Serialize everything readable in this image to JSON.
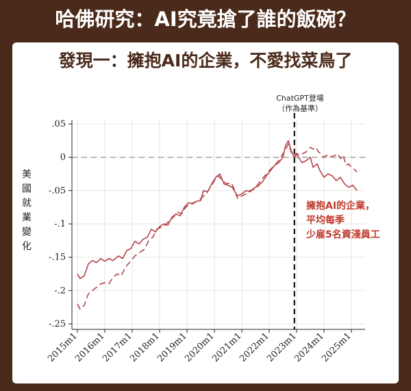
{
  "title": "哈佛研究：AI究竟搶了誰的飯碗？",
  "subtitle": "發現一：擁抱AI的企業，不愛找菜鳥了",
  "ylabel": "美國就業變化",
  "annotation_line1": "ChatGPT登場",
  "annotation_line2": "（作為基準）",
  "red_label_1": "擁抱AI的企業，",
  "red_label_2": "平均每季",
  "red_label_3": "少雇5名資淺員工",
  "colors": {
    "background": "#4a2a1a",
    "series": "#b5434a",
    "reference": "#111111"
  },
  "chart_data": {
    "type": "line",
    "xlim": [
      2015.0,
      2025.25
    ],
    "ylim": [
      -0.25,
      0.05
    ],
    "x_ticks": [
      {
        "value": 2015,
        "label": "2015m1"
      },
      {
        "value": 2016,
        "label": "2016m1"
      },
      {
        "value": 2017,
        "label": "2017m1"
      },
      {
        "value": 2018,
        "label": "2018m1"
      },
      {
        "value": 2019,
        "label": "2019m1"
      },
      {
        "value": 2020,
        "label": "2020m1"
      },
      {
        "value": 2021,
        "label": "2021m1"
      },
      {
        "value": 2022,
        "label": "2022m1"
      },
      {
        "value": 2023,
        "label": "2023m1"
      },
      {
        "value": 2024,
        "label": "2024m1"
      },
      {
        "value": 2025,
        "label": "2025m1"
      }
    ],
    "y_ticks": [
      {
        "value": 0.05,
        "label": ".05"
      },
      {
        "value": 0,
        "label": "0"
      },
      {
        "value": -0.05,
        "label": "-.05"
      },
      {
        "value": -0.1,
        "label": "-.1"
      },
      {
        "value": -0.15,
        "label": "-.15"
      },
      {
        "value": -0.2,
        "label": "-.2"
      },
      {
        "value": -0.25,
        "label": "-.25"
      }
    ],
    "reference_x": 2022.92,
    "series": [
      {
        "style": "solid",
        "points": [
          [
            2015.0,
            -0.175
          ],
          [
            2015.1,
            -0.182
          ],
          [
            2015.25,
            -0.178
          ],
          [
            2015.4,
            -0.16
          ],
          [
            2015.55,
            -0.155
          ],
          [
            2015.7,
            -0.158
          ],
          [
            2015.85,
            -0.152
          ],
          [
            2016.0,
            -0.156
          ],
          [
            2016.15,
            -0.152
          ],
          [
            2016.3,
            -0.155
          ],
          [
            2016.5,
            -0.148
          ],
          [
            2016.65,
            -0.152
          ],
          [
            2016.8,
            -0.14
          ],
          [
            2016.95,
            -0.137
          ],
          [
            2017.1,
            -0.126
          ],
          [
            2017.25,
            -0.13
          ],
          [
            2017.4,
            -0.123
          ],
          [
            2017.55,
            -0.12
          ],
          [
            2017.7,
            -0.108
          ],
          [
            2017.85,
            -0.112
          ],
          [
            2018.0,
            -0.104
          ],
          [
            2018.15,
            -0.1
          ],
          [
            2018.3,
            -0.102
          ],
          [
            2018.45,
            -0.09
          ],
          [
            2018.6,
            -0.085
          ],
          [
            2018.75,
            -0.088
          ],
          [
            2018.9,
            -0.075
          ],
          [
            2019.05,
            -0.068
          ],
          [
            2019.2,
            -0.07
          ],
          [
            2019.35,
            -0.066
          ],
          [
            2019.5,
            -0.065
          ],
          [
            2019.6,
            -0.05
          ],
          [
            2019.75,
            -0.052
          ],
          [
            2019.9,
            -0.04
          ],
          [
            2020.05,
            -0.03
          ],
          [
            2020.2,
            -0.025
          ],
          [
            2020.35,
            -0.04
          ],
          [
            2020.5,
            -0.042
          ],
          [
            2020.65,
            -0.045
          ],
          [
            2020.75,
            -0.052
          ],
          [
            2020.85,
            -0.058
          ],
          [
            2021.0,
            -0.055
          ],
          [
            2021.15,
            -0.05
          ],
          [
            2021.3,
            -0.052
          ],
          [
            2021.45,
            -0.046
          ],
          [
            2021.6,
            -0.043
          ],
          [
            2021.75,
            -0.037
          ],
          [
            2021.9,
            -0.028
          ],
          [
            2022.05,
            -0.02
          ],
          [
            2022.2,
            -0.012
          ],
          [
            2022.35,
            -0.008
          ],
          [
            2022.5,
            0.0
          ],
          [
            2022.6,
            0.018
          ],
          [
            2022.7,
            0.025
          ],
          [
            2022.8,
            0.01
          ],
          [
            2022.92,
            0.0
          ],
          [
            2023.0,
            0.005
          ],
          [
            2023.1,
            -0.002
          ],
          [
            2023.2,
            -0.008
          ],
          [
            2023.35,
            -0.005
          ],
          [
            2023.5,
            0.0
          ],
          [
            2023.6,
            -0.015
          ],
          [
            2023.75,
            -0.01
          ],
          [
            2023.85,
            -0.02
          ],
          [
            2024.0,
            -0.03
          ],
          [
            2024.15,
            -0.025
          ],
          [
            2024.3,
            -0.028
          ],
          [
            2024.45,
            -0.035
          ],
          [
            2024.6,
            -0.03
          ],
          [
            2024.75,
            -0.04
          ],
          [
            2024.9,
            -0.045
          ],
          [
            2025.05,
            -0.042
          ],
          [
            2025.2,
            -0.05
          ]
        ]
      },
      {
        "style": "dashed",
        "points": [
          [
            2015.0,
            -0.22
          ],
          [
            2015.1,
            -0.228
          ],
          [
            2015.25,
            -0.222
          ],
          [
            2015.4,
            -0.205
          ],
          [
            2015.55,
            -0.2
          ],
          [
            2015.7,
            -0.195
          ],
          [
            2015.85,
            -0.19
          ],
          [
            2016.0,
            -0.188
          ],
          [
            2016.15,
            -0.19
          ],
          [
            2016.3,
            -0.18
          ],
          [
            2016.45,
            -0.175
          ],
          [
            2016.6,
            -0.178
          ],
          [
            2016.75,
            -0.165
          ],
          [
            2016.9,
            -0.158
          ],
          [
            2017.1,
            -0.148
          ],
          [
            2017.3,
            -0.142
          ],
          [
            2017.45,
            -0.138
          ],
          [
            2017.6,
            -0.125
          ],
          [
            2017.75,
            -0.12
          ],
          [
            2017.9,
            -0.108
          ],
          [
            2018.05,
            -0.105
          ],
          [
            2018.2,
            -0.102
          ],
          [
            2018.35,
            -0.095
          ],
          [
            2018.5,
            -0.09
          ],
          [
            2018.65,
            -0.082
          ],
          [
            2018.8,
            -0.085
          ],
          [
            2018.95,
            -0.075
          ],
          [
            2019.1,
            -0.07
          ],
          [
            2019.25,
            -0.068
          ],
          [
            2019.4,
            -0.065
          ],
          [
            2019.55,
            -0.06
          ],
          [
            2019.7,
            -0.055
          ],
          [
            2019.85,
            -0.045
          ],
          [
            2020.0,
            -0.035
          ],
          [
            2020.15,
            -0.028
          ],
          [
            2020.3,
            -0.035
          ],
          [
            2020.45,
            -0.04
          ],
          [
            2020.6,
            -0.038
          ],
          [
            2020.7,
            -0.045
          ],
          [
            2020.85,
            -0.062
          ],
          [
            2021.0,
            -0.058
          ],
          [
            2021.15,
            -0.055
          ],
          [
            2021.3,
            -0.05
          ],
          [
            2021.45,
            -0.048
          ],
          [
            2021.6,
            -0.04
          ],
          [
            2021.75,
            -0.032
          ],
          [
            2021.9,
            -0.025
          ],
          [
            2022.05,
            -0.018
          ],
          [
            2022.2,
            -0.012
          ],
          [
            2022.35,
            -0.005
          ],
          [
            2022.5,
            0.005
          ],
          [
            2022.6,
            0.012
          ],
          [
            2022.7,
            0.02
          ],
          [
            2022.8,
            0.008
          ],
          [
            2022.92,
            0.002
          ],
          [
            2023.0,
            0.006
          ],
          [
            2023.1,
            0.003
          ],
          [
            2023.2,
            0.005
          ],
          [
            2023.35,
            0.008
          ],
          [
            2023.5,
            0.015
          ],
          [
            2023.6,
            0.012
          ],
          [
            2023.7,
            0.015
          ],
          [
            2023.8,
            0.008
          ],
          [
            2023.9,
            0.005
          ],
          [
            2024.0,
            0.0
          ],
          [
            2024.1,
            0.003
          ],
          [
            2024.2,
            0.0
          ],
          [
            2024.35,
            0.002
          ],
          [
            2024.5,
            0.005
          ],
          [
            2024.6,
            -0.002
          ],
          [
            2024.7,
            0.003
          ],
          [
            2024.8,
            -0.012
          ],
          [
            2024.9,
            -0.01
          ],
          [
            2025.0,
            -0.015
          ],
          [
            2025.1,
            -0.018
          ],
          [
            2025.2,
            -0.022
          ]
        ]
      }
    ]
  }
}
